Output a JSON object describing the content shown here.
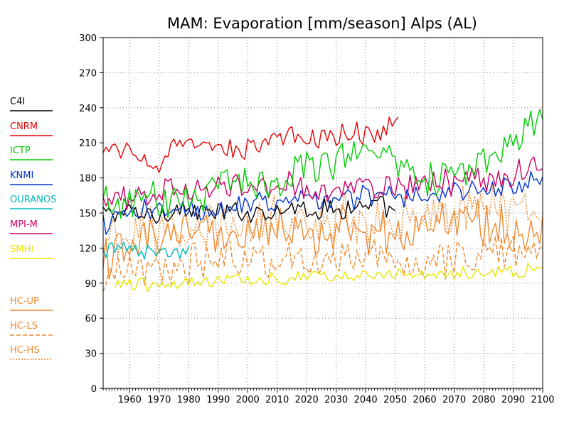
{
  "chart_data": {
    "type": "line",
    "title": "MAM: Evaporation [mm/season] Alps (AL)",
    "xlabel": "",
    "ylabel": "",
    "xlim": [
      1951,
      2100
    ],
    "ylim": [
      0,
      300
    ],
    "x_ticks": [
      1960,
      1970,
      1980,
      1990,
      2000,
      2010,
      2020,
      2030,
      2040,
      2050,
      2060,
      2070,
      2080,
      2090,
      2100
    ],
    "y_ticks": [
      0,
      30,
      60,
      90,
      120,
      150,
      180,
      210,
      240,
      270,
      300
    ],
    "grid": true,
    "legend_position": "left",
    "series": [
      {
        "name": "C4I",
        "color": "#000000",
        "dash": "solid",
        "start": 1951,
        "end": 2050,
        "anchors": [
          [
            1951,
            150
          ],
          [
            1960,
            150
          ],
          [
            1970,
            148
          ],
          [
            1975,
            155
          ],
          [
            1985,
            150
          ],
          [
            1995,
            150
          ],
          [
            2005,
            152
          ],
          [
            2015,
            155
          ],
          [
            2025,
            153
          ],
          [
            2035,
            155
          ],
          [
            2045,
            155
          ],
          [
            2050,
            150
          ]
        ],
        "amp": 8
      },
      {
        "name": "CNRM",
        "color": "#e60000",
        "dash": "solid",
        "start": 1951,
        "end": 2051,
        "anchors": [
          [
            1951,
            200
          ],
          [
            1960,
            205
          ],
          [
            1966,
            195
          ],
          [
            1970,
            190
          ],
          [
            1975,
            205
          ],
          [
            1985,
            208
          ],
          [
            1995,
            202
          ],
          [
            2005,
            212
          ],
          [
            2015,
            214
          ],
          [
            2025,
            214
          ],
          [
            2035,
            218
          ],
          [
            2045,
            220
          ],
          [
            2051,
            230
          ]
        ],
        "amp": 8
      },
      {
        "name": "ICTP",
        "color": "#00cc00",
        "dash": "solid",
        "start": 1951,
        "end": 2100,
        "anchors": [
          [
            1951,
            155
          ],
          [
            1960,
            160
          ],
          [
            1970,
            160
          ],
          [
            1980,
            165
          ],
          [
            1990,
            172
          ],
          [
            2000,
            180
          ],
          [
            2010,
            178
          ],
          [
            2020,
            190
          ],
          [
            2030,
            198
          ],
          [
            2040,
            205
          ],
          [
            2050,
            200
          ],
          [
            2060,
            180
          ],
          [
            2070,
            185
          ],
          [
            2080,
            190
          ],
          [
            2090,
            210
          ],
          [
            2097,
            220
          ],
          [
            2100,
            238
          ]
        ],
        "amp": 14
      },
      {
        "name": "KNMI",
        "color": "#0033cc",
        "dash": "solid",
        "start": 1951,
        "end": 2100,
        "anchors": [
          [
            1951,
            140
          ],
          [
            1960,
            150
          ],
          [
            1970,
            150
          ],
          [
            1980,
            152
          ],
          [
            1990,
            155
          ],
          [
            2000,
            158
          ],
          [
            2010,
            160
          ],
          [
            2020,
            162
          ],
          [
            2030,
            163
          ],
          [
            2040,
            165
          ],
          [
            2050,
            165
          ],
          [
            2060,
            167
          ],
          [
            2070,
            168
          ],
          [
            2080,
            170
          ],
          [
            2090,
            172
          ],
          [
            2100,
            178
          ]
        ],
        "amp": 9
      },
      {
        "name": "OURANOS",
        "color": "#00bbbb",
        "dash": "solid",
        "start": 1951,
        "end": 1980,
        "anchors": [
          [
            1951,
            115
          ],
          [
            1958,
            120
          ],
          [
            1965,
            115
          ],
          [
            1972,
            120
          ],
          [
            1980,
            118
          ]
        ],
        "amp": 7
      },
      {
        "name": "MPI-M",
        "color": "#cc0066",
        "dash": "solid",
        "start": 1951,
        "end": 2100,
        "anchors": [
          [
            1951,
            155
          ],
          [
            1960,
            165
          ],
          [
            1970,
            168
          ],
          [
            1980,
            172
          ],
          [
            1990,
            170
          ],
          [
            2000,
            172
          ],
          [
            2010,
            175
          ],
          [
            2020,
            172
          ],
          [
            2030,
            170
          ],
          [
            2040,
            172
          ],
          [
            2050,
            172
          ],
          [
            2060,
            175
          ],
          [
            2070,
            178
          ],
          [
            2080,
            180
          ],
          [
            2090,
            180
          ],
          [
            2100,
            195
          ]
        ],
        "amp": 10
      },
      {
        "name": "SMHI",
        "color": "#e6e600",
        "dash": "solid",
        "start": 1955,
        "end": 2100,
        "anchors": [
          [
            1955,
            90
          ],
          [
            1970,
            88
          ],
          [
            1985,
            90
          ],
          [
            2000,
            93
          ],
          [
            2015,
            95
          ],
          [
            2030,
            97
          ],
          [
            2045,
            98
          ],
          [
            2060,
            97
          ],
          [
            2075,
            100
          ],
          [
            2090,
            100
          ],
          [
            2100,
            102
          ]
        ],
        "amp": 5
      },
      {
        "name": "HC-UP",
        "color": "#f08a30",
        "dash": "solid",
        "start": 1951,
        "end": 2100,
        "anchors": [
          [
            1951,
            110
          ],
          [
            1960,
            120
          ],
          [
            1970,
            125
          ],
          [
            1980,
            130
          ],
          [
            1990,
            132
          ],
          [
            2000,
            130
          ],
          [
            2010,
            135
          ],
          [
            2020,
            132
          ],
          [
            2030,
            135
          ],
          [
            2040,
            135
          ],
          [
            2050,
            132
          ],
          [
            2060,
            135
          ],
          [
            2070,
            140
          ],
          [
            2080,
            140
          ],
          [
            2090,
            140
          ],
          [
            2100,
            142
          ]
        ],
        "amp": 17
      },
      {
        "name": "HC-LS",
        "color": "#f08a30",
        "dash": "dashed",
        "start": 1951,
        "end": 2100,
        "anchors": [
          [
            1951,
            95
          ],
          [
            1960,
            100
          ],
          [
            1970,
            100
          ],
          [
            1980,
            105
          ],
          [
            1990,
            110
          ],
          [
            2000,
            110
          ],
          [
            2010,
            112
          ],
          [
            2020,
            110
          ],
          [
            2030,
            112
          ],
          [
            2040,
            112
          ],
          [
            2050,
            110
          ],
          [
            2060,
            108
          ],
          [
            2070,
            112
          ],
          [
            2080,
            115
          ],
          [
            2090,
            115
          ],
          [
            2100,
            118
          ]
        ],
        "amp": 14
      },
      {
        "name": "HC-HS",
        "color": "#f08a30",
        "dash": "dotted",
        "start": 1951,
        "end": 2100,
        "anchors": [
          [
            1951,
            125
          ],
          [
            1960,
            130
          ],
          [
            1970,
            135
          ],
          [
            1980,
            138
          ],
          [
            1990,
            140
          ],
          [
            2000,
            140
          ],
          [
            2010,
            143
          ],
          [
            2020,
            142
          ],
          [
            2030,
            145
          ],
          [
            2040,
            145
          ],
          [
            2050,
            143
          ],
          [
            2060,
            145
          ],
          [
            2070,
            150
          ],
          [
            2080,
            152
          ],
          [
            2090,
            152
          ],
          [
            2100,
            155
          ]
        ],
        "amp": 18
      }
    ]
  }
}
